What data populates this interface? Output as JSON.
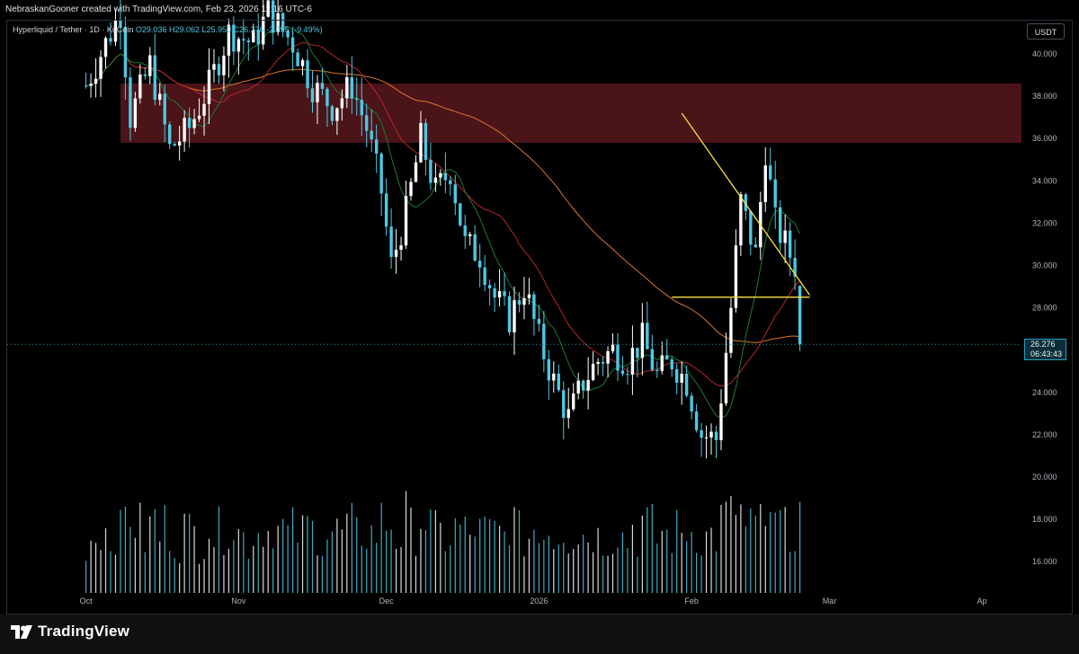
{
  "header": {
    "credit": "NebraskanGooner created with TradingView.com, Feb 23, 2026 11:16 UTC-6"
  },
  "legend": {
    "symbol": "Hyperliquid / Tether · 1D · KuCoin",
    "open": "O29.036",
    "high": "H29.062",
    "low": "L25.950",
    "close": "C26.276",
    "change": "-2.755 (-9.49%)"
  },
  "price_scale": {
    "unit": "USDT",
    "last_price": "26.276",
    "countdown": "06:43:43"
  },
  "footer": {
    "brand": "TradingView"
  },
  "colors": {
    "background": "#000000",
    "up_candle": "#ffffff",
    "down_candle": "#4cc9e4",
    "resistance_zone": "#4a1418",
    "trendline": "#ffe23a",
    "ma_long": "#d9762b",
    "ma_mid": "#b8262b",
    "ma_short": "#1d7a33",
    "last_price_line": "#21a1c4"
  },
  "chart_data": {
    "type": "candlestick",
    "title": "",
    "xlabel": "",
    "ylabel": "",
    "x_ticks": [
      "Oct",
      "Nov",
      "Dec",
      "2026",
      "Feb",
      "Mar",
      "Ap"
    ],
    "x_tick_dates": [
      "2025-10-01",
      "2025-11-01",
      "2025-12-01",
      "2026-01-01",
      "2026-02-01",
      "2026-03-01",
      "2026-04-01"
    ],
    "y_ticks": [
      "16.000",
      "18.000",
      "20.000",
      "22.000",
      "24.000",
      "26.000",
      "28.000",
      "30.000",
      "32.000",
      "34.000",
      "36.000",
      "38.000",
      "40.000"
    ],
    "y_tick_values": [
      16,
      18,
      20,
      22,
      24,
      26,
      28,
      30,
      32,
      34,
      36,
      38,
      40
    ],
    "ylim": [
      14.8,
      41.6
    ],
    "last_price": 26.276,
    "grid": false,
    "resistance_zone": {
      "from": 35.8,
      "to": 38.6
    },
    "annotations": {
      "descending_trendline": [
        [
          "2026-01-30",
          37.2
        ],
        [
          "2026-02-25",
          28.6
        ]
      ],
      "horizontal_support": [
        [
          "2026-01-28",
          28.5
        ],
        [
          "2026-02-25",
          28.5
        ]
      ]
    },
    "series": [
      {
        "kind": "price",
        "points": [
          [
            "2025-10-01",
            38.5
          ],
          [
            "2025-10-08",
            42.0
          ],
          [
            "2025-10-10",
            37.0
          ],
          [
            "2025-10-14",
            39.5
          ],
          [
            "2025-10-18",
            35.5
          ],
          [
            "2025-10-22",
            36.5
          ],
          [
            "2025-10-26",
            38.5
          ],
          [
            "2025-10-30",
            41.0
          ],
          [
            "2025-11-04",
            40.5
          ],
          [
            "2025-11-07",
            42.0
          ],
          [
            "2025-11-12",
            40.5
          ],
          [
            "2025-11-16",
            38.5
          ],
          [
            "2025-11-20",
            37.5
          ],
          [
            "2025-11-24",
            38.5
          ],
          [
            "2025-11-27",
            36.5
          ],
          [
            "2025-11-30",
            33.5
          ],
          [
            "2025-12-02",
            30.0
          ],
          [
            "2025-12-05",
            32.5
          ],
          [
            "2025-12-08",
            36.0
          ],
          [
            "2025-12-11",
            33.5
          ],
          [
            "2025-12-14",
            34.5
          ],
          [
            "2025-12-17",
            31.0
          ],
          [
            "2025-12-20",
            30.5
          ],
          [
            "2025-12-23",
            28.5
          ],
          [
            "2025-12-26",
            27.5
          ],
          [
            "2025-12-29",
            29.0
          ],
          [
            "2026-01-01",
            26.5
          ],
          [
            "2026-01-04",
            24.5
          ],
          [
            "2026-01-07",
            22.8
          ],
          [
            "2026-01-10",
            24.5
          ],
          [
            "2026-01-13",
            25.5
          ],
          [
            "2026-01-16",
            26.0
          ],
          [
            "2026-01-19",
            25.5
          ],
          [
            "2026-01-22",
            26.5
          ],
          [
            "2026-01-25",
            24.8
          ],
          [
            "2026-01-28",
            25.5
          ],
          [
            "2026-01-31",
            24.5
          ],
          [
            "2026-02-03",
            22.0
          ],
          [
            "2026-02-06",
            21.8
          ],
          [
            "2026-02-09",
            28.0
          ],
          [
            "2026-02-11",
            33.0
          ],
          [
            "2026-02-14",
            30.5
          ],
          [
            "2026-02-16",
            35.5
          ],
          [
            "2026-02-18",
            32.0
          ],
          [
            "2026-02-20",
            31.0
          ],
          [
            "2026-02-22",
            30.0
          ],
          [
            "2026-02-23",
            26.276
          ]
        ]
      }
    ]
  }
}
